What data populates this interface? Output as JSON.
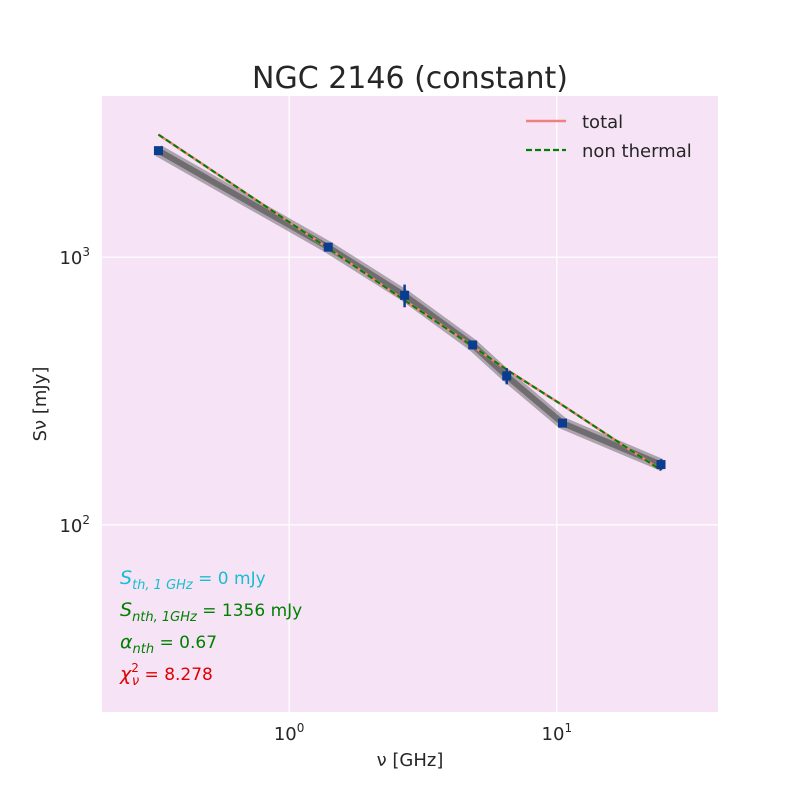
{
  "chart_data": {
    "type": "scatter",
    "title": "NGC 2146 (constant)",
    "xlabel": "ν [GHz]",
    "ylabel": "Sν [mJy]",
    "xscale": "log",
    "yscale": "log",
    "xlim": [
      0.2,
      40
    ],
    "ylim": [
      20,
      4000
    ],
    "grid": true,
    "background": "#f6e4f6",
    "xticks": [
      {
        "value": 1,
        "base": "10",
        "exp": "0"
      },
      {
        "value": 10,
        "base": "10",
        "exp": "1"
      }
    ],
    "yticks": [
      {
        "value": 100,
        "base": "10",
        "exp": "2"
      },
      {
        "value": 1000,
        "base": "10",
        "exp": "3"
      }
    ],
    "legend": {
      "position": "top-right",
      "entries": [
        {
          "label": "total",
          "color": "#f08080",
          "style": "solid"
        },
        {
          "label": "non thermal",
          "color": "#008000",
          "style": "dashed"
        }
      ]
    },
    "points": {
      "color": "#0a3d8f",
      "x": [
        0.325,
        1.4,
        2.7,
        4.85,
        6.5,
        10.5,
        24.5
      ],
      "y": [
        2500,
        1090,
        720,
        470,
        360,
        240,
        168
      ],
      "yerr": [
        60,
        30,
        70,
        15,
        25,
        8,
        8
      ]
    },
    "posterior_band": {
      "color": "#555555",
      "x": [
        0.325,
        1.4,
        2.7,
        4.85,
        6.5,
        10.5,
        24.5
      ],
      "y": [
        2500,
        1090,
        720,
        470,
        360,
        240,
        168
      ]
    },
    "series": [
      {
        "name": "total",
        "color": "#f08080",
        "x": [
          0.325,
          1.4,
          2.7,
          4.85,
          6.5,
          10.5,
          24.5
        ],
        "y": [
          2870,
          1080,
          690,
          465,
          380,
          280,
          160
        ]
      },
      {
        "name": "non thermal",
        "color": "#008000",
        "x": [
          0.325,
          1.4,
          2.7,
          4.85,
          6.5,
          10.5,
          24.5
        ],
        "y": [
          2870,
          1080,
          690,
          465,
          380,
          280,
          160
        ]
      }
    ],
    "annotations": [
      {
        "sym": "S",
        "sub": "th, 1 GHz",
        "rest": " = 0 mJy",
        "color": "#17becf"
      },
      {
        "sym": "S",
        "sub": "nth, 1GHz",
        "rest": " = 1356 mJy",
        "color": "#008000"
      },
      {
        "sym": "α",
        "sub": "nth",
        "rest": " = 0.67",
        "color": "#008000"
      },
      {
        "sym": "χ",
        "sub": "ν",
        "sup": "2",
        "rest": " = 8.278",
        "color": "#e00000"
      }
    ]
  }
}
